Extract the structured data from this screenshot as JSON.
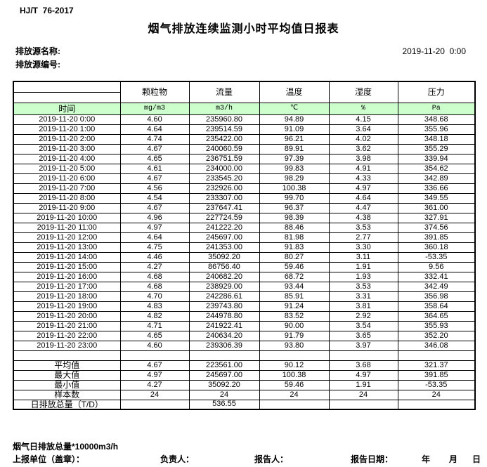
{
  "header": {
    "standard_code": "HJ/T  76-2017",
    "title": "烟气排放连续监测小时平均值日报表",
    "source_name_label": "排放源名称:",
    "source_code_label": "排放源编号:",
    "datetime": "2019-11-20  0:00"
  },
  "table": {
    "pollutant_headers": [
      "颗粒物",
      "流量",
      "温度",
      "湿度",
      "压力"
    ],
    "unit_row": {
      "time_label": "时间",
      "units": [
        "mg/m3",
        "m3/h",
        "℃",
        "%",
        "Pa"
      ]
    },
    "rows": [
      {
        "time": "2019-11-20  0:00",
        "values": [
          "4.60",
          "235960.80",
          "94.89",
          "4.15",
          "348.68"
        ]
      },
      {
        "time": "2019-11-20  1:00",
        "values": [
          "4.64",
          "239514.59",
          "91.09",
          "3.64",
          "355.96"
        ]
      },
      {
        "time": "2019-11-20  2:00",
        "values": [
          "4.74",
          "235422.00",
          "96.21",
          "4.02",
          "348.18"
        ]
      },
      {
        "time": "2019-11-20  3:00",
        "values": [
          "4.67",
          "240060.59",
          "89.91",
          "3.62",
          "355.29"
        ]
      },
      {
        "time": "2019-11-20  4:00",
        "values": [
          "4.65",
          "236751.59",
          "97.39",
          "3.98",
          "339.94"
        ]
      },
      {
        "time": "2019-11-20  5:00",
        "values": [
          "4.61",
          "234000.00",
          "99.83",
          "4.91",
          "354.62"
        ]
      },
      {
        "time": "2019-11-20  6:00",
        "values": [
          "4.67",
          "233545.20",
          "98.29",
          "4.33",
          "342.89"
        ]
      },
      {
        "time": "2019-11-20  7:00",
        "values": [
          "4.56",
          "232926.00",
          "100.38",
          "4.97",
          "336.66"
        ]
      },
      {
        "time": "2019-11-20  8:00",
        "values": [
          "4.54",
          "233307.00",
          "99.70",
          "4.64",
          "349.55"
        ]
      },
      {
        "time": "2019-11-20  9:00",
        "values": [
          "4.67",
          "237647.41",
          "96.37",
          "4.47",
          "361.00"
        ]
      },
      {
        "time": "2019-11-20 10:00",
        "values": [
          "4.96",
          "227724.59",
          "98.39",
          "4.38",
          "327.91"
        ]
      },
      {
        "time": "2019-11-20 11:00",
        "values": [
          "4.97",
          "241222.20",
          "88.46",
          "3.53",
          "374.56"
        ]
      },
      {
        "time": "2019-11-20 12:00",
        "values": [
          "4.64",
          "245697.00",
          "81.98",
          "2.77",
          "391.85"
        ]
      },
      {
        "time": "2019-11-20 13:00",
        "values": [
          "4.75",
          "241353.00",
          "91.83",
          "3.30",
          "360.18"
        ]
      },
      {
        "time": "2019-11-20 14:00",
        "values": [
          "4.46",
          "35092.20",
          "80.27",
          "3.11",
          "-53.35"
        ]
      },
      {
        "time": "2019-11-20 15:00",
        "values": [
          "4.27",
          "86756.40",
          "59.46",
          "1.91",
          "9.56"
        ]
      },
      {
        "time": "2019-11-20 16:00",
        "values": [
          "4.68",
          "240682.20",
          "68.72",
          "1.93",
          "332.41"
        ]
      },
      {
        "time": "2019-11-20 17:00",
        "values": [
          "4.68",
          "238929.00",
          "93.44",
          "3.53",
          "342.49"
        ]
      },
      {
        "time": "2019-11-20 18:00",
        "values": [
          "4.70",
          "242286.61",
          "85.91",
          "3.31",
          "356.98"
        ]
      },
      {
        "time": "2019-11-20 19:00",
        "values": [
          "4.83",
          "239743.80",
          "91.24",
          "3.81",
          "358.64"
        ]
      },
      {
        "time": "2019-11-20 20:00",
        "values": [
          "4.82",
          "244978.80",
          "83.52",
          "2.92",
          "364.65"
        ]
      },
      {
        "time": "2019-11-20 21:00",
        "values": [
          "4.71",
          "241922.41",
          "90.00",
          "3.54",
          "355.93"
        ]
      },
      {
        "time": "2019-11-20 22:00",
        "values": [
          "4.65",
          "240634.20",
          "91.79",
          "3.65",
          "352.20"
        ]
      },
      {
        "time": "2019-11-20 23:00",
        "values": [
          "4.60",
          "239306.39",
          "93.80",
          "3.97",
          "346.08"
        ]
      }
    ],
    "summary_rows": [
      {
        "label": "平均值",
        "values": [
          "4.67",
          "223561.00",
          "90.12",
          "3.68",
          "321.37"
        ]
      },
      {
        "label": "最大值",
        "values": [
          "4.97",
          "245697.00",
          "100.38",
          "4.97",
          "391.85"
        ]
      },
      {
        "label": "最小值",
        "values": [
          "4.27",
          "35092.20",
          "59.46",
          "1.91",
          "-53.35"
        ]
      },
      {
        "label": "样本数",
        "values": [
          "24",
          "24",
          "24",
          "24",
          "24"
        ]
      },
      {
        "label": "日排放总量（T/D）",
        "values": [
          "",
          "536.55",
          "",
          "",
          ""
        ]
      }
    ]
  },
  "footer": {
    "note": "烟气日排放总量*10000m3/h",
    "report_unit_label": "上报单位（盖章）：",
    "responsible_label": "负责人：",
    "reporter_label": "报告人：",
    "report_date_label": "报告日期：",
    "year_label": "年",
    "month_label": "月",
    "day_label": "日"
  },
  "colors": {
    "header_green": "#ccffcc",
    "border": "#000000",
    "text": "#000000"
  }
}
